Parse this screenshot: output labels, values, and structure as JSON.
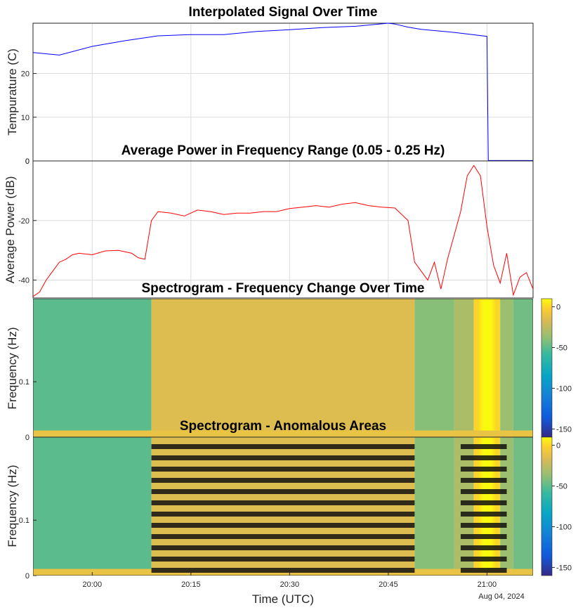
{
  "colors": {
    "temperature": "#0000ff",
    "power": "#ff0000",
    "grid": "#dcdcdc",
    "anomaly": "#111111"
  },
  "chart_data": [
    {
      "type": "line",
      "title": "Interpolated Signal Over Time",
      "xlabel": "",
      "ylabel": "Tempurature (C)",
      "xlim": [
        "19:51",
        "21:07"
      ],
      "ylim": [
        0,
        31.5
      ],
      "yticks": [
        0,
        10,
        20
      ],
      "grid": true,
      "series": [
        {
          "x": [
            "19:51",
            "19:55",
            "20:00",
            "20:05",
            "20:10",
            "20:15",
            "20:20",
            "20:25",
            "20:30",
            "20:35",
            "20:40",
            "20:45",
            "20:46",
            "20:48",
            "20:50",
            "20:55",
            "21:00",
            "21:00.2",
            "21:07"
          ],
          "y": [
            24.8,
            24.2,
            26.2,
            27.5,
            28.6,
            28.9,
            28.9,
            29.6,
            30.0,
            30.5,
            30.8,
            31.5,
            31.3,
            30.6,
            30.1,
            29.4,
            28.5,
            0.1,
            0.1
          ]
        }
      ]
    },
    {
      "type": "line",
      "title": "Average Power in Frequency Range (0.05 - 0.25 Hz)",
      "xlabel": "",
      "ylabel": "Average Power (dB)",
      "xlim": [
        "19:51",
        "21:07"
      ],
      "ylim": [
        -46,
        0
      ],
      "yticks": [
        -40,
        -20,
        0
      ],
      "grid": true,
      "series": [
        {
          "x": [
            "19:51",
            "19:52",
            "19:53",
            "19:54",
            "19:55",
            "19:56",
            "19:57",
            "19:58",
            "20:00",
            "20:02",
            "20:04",
            "20:06",
            "20:07",
            "20:08",
            "20:09",
            "20:10",
            "20:12",
            "20:14",
            "20:16",
            "20:18",
            "20:20",
            "20:22",
            "20:24",
            "20:26",
            "20:28",
            "20:30",
            "20:32",
            "20:34",
            "20:36",
            "20:38",
            "20:40",
            "20:42",
            "20:44",
            "20:46",
            "20:48",
            "20:49",
            "20:50",
            "20:51",
            "20:52",
            "20:53",
            "20:54",
            "20:55",
            "20:56",
            "20:57",
            "20:58",
            "20:59",
            "21:00",
            "21:01",
            "21:02",
            "21:03",
            "21:04",
            "21:05",
            "21:06",
            "21:07"
          ],
          "y": [
            -45.5,
            -44,
            -40,
            -37,
            -34,
            -33,
            -31.5,
            -31,
            -31.5,
            -30.2,
            -30,
            -31,
            -32.5,
            -33,
            -20,
            -17,
            -17.5,
            -18.5,
            -16.5,
            -17,
            -18,
            -17.5,
            -17.5,
            -17,
            -17,
            -16,
            -15.5,
            -15,
            -15.5,
            -14.5,
            -14,
            -15,
            -15.5,
            -15.8,
            -20,
            -34,
            -37,
            -40,
            -34,
            -43,
            -33,
            -25,
            -17,
            -5,
            -1.5,
            -5,
            -22,
            -35,
            -41,
            -31,
            -45,
            -39,
            -37.5,
            -43
          ]
        }
      ]
    },
    {
      "type": "heatmap",
      "title": "Spectrogram - Frequency Change Over Time",
      "xlabel": "",
      "ylabel": "Frequency (Hz)",
      "xlim": [
        "19:51",
        "21:07"
      ],
      "ylim": [
        0,
        0.25
      ],
      "yticks": [
        0,
        0.1
      ],
      "colorbar_ticks": [
        0,
        -50,
        -100,
        -150
      ],
      "clim": [
        -160,
        10
      ],
      "colormap": "parula",
      "time_bands": [
        {
          "from": "19:51",
          "to": "20:09",
          "level": -50
        },
        {
          "from": "20:09",
          "to": "20:49",
          "level": -15
        },
        {
          "from": "20:49",
          "to": "20:55",
          "level": -40
        },
        {
          "from": "20:55",
          "to": "20:58",
          "level": -30
        },
        {
          "from": "20:58",
          "to": "21:02",
          "level": 0
        },
        {
          "from": "21:02",
          "to": "21:04",
          "level": -35
        },
        {
          "from": "21:04",
          "to": "21:07",
          "level": -45
        }
      ]
    },
    {
      "type": "heatmap",
      "title": "Spectrogram - Anomalous Areas",
      "xlabel": "Time (UTC)",
      "ylabel": "Frequency (Hz)",
      "xlim": [
        "19:51",
        "21:07"
      ],
      "ylim": [
        0,
        0.25
      ],
      "yticks": [
        0,
        0.1
      ],
      "xticks": [
        "20:00",
        "20:15",
        "20:30",
        "20:45",
        "21:00"
      ],
      "date_label": "Aug 04, 2024",
      "colorbar_ticks": [
        0,
        -50,
        -100,
        -150
      ],
      "clim": [
        -160,
        10
      ],
      "colormap": "parula",
      "anomalies": [
        {
          "from": "20:09",
          "to": "20:49"
        },
        {
          "from": "20:56",
          "to": "21:03"
        }
      ]
    }
  ]
}
